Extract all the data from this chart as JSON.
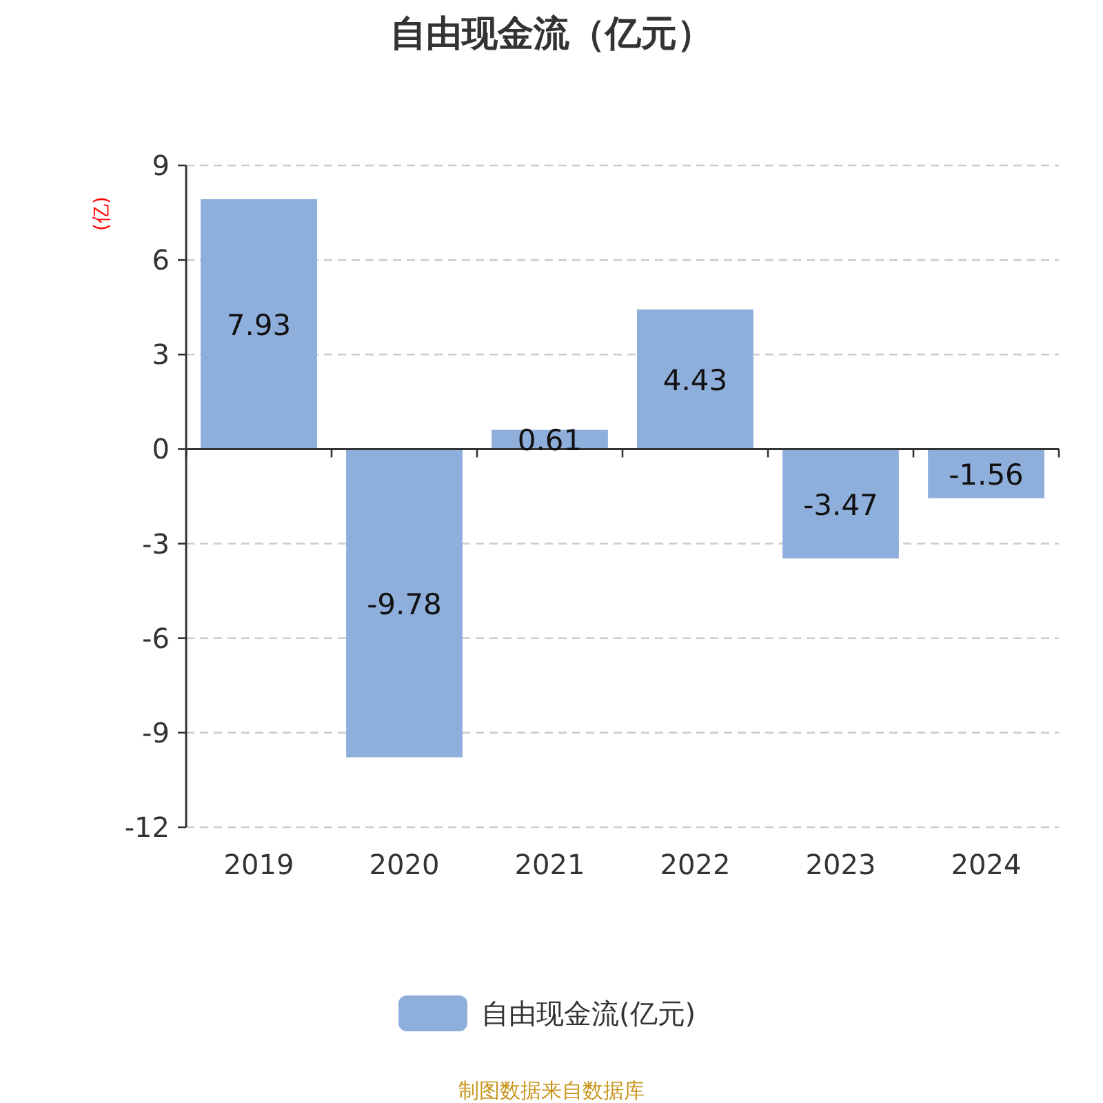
{
  "chart_data": {
    "type": "bar",
    "title": "自由现金流（亿元）",
    "ylabel": "(亿)",
    "categories": [
      "2019",
      "2020",
      "2021",
      "2022",
      "2023",
      "2024"
    ],
    "series": [
      {
        "name": "自由现金流(亿元)",
        "color": "#8eaedb",
        "values": [
          7.93,
          -9.78,
          0.61,
          4.43,
          -3.47,
          -1.56
        ]
      }
    ],
    "ylim": [
      -12,
      9
    ],
    "yticks": [
      -12,
      -9,
      -6,
      -3,
      0,
      3,
      6,
      9
    ],
    "grid": "y",
    "legend": "bottom",
    "data_labels": true,
    "annotations": [
      "制图数据来自数据库"
    ]
  }
}
